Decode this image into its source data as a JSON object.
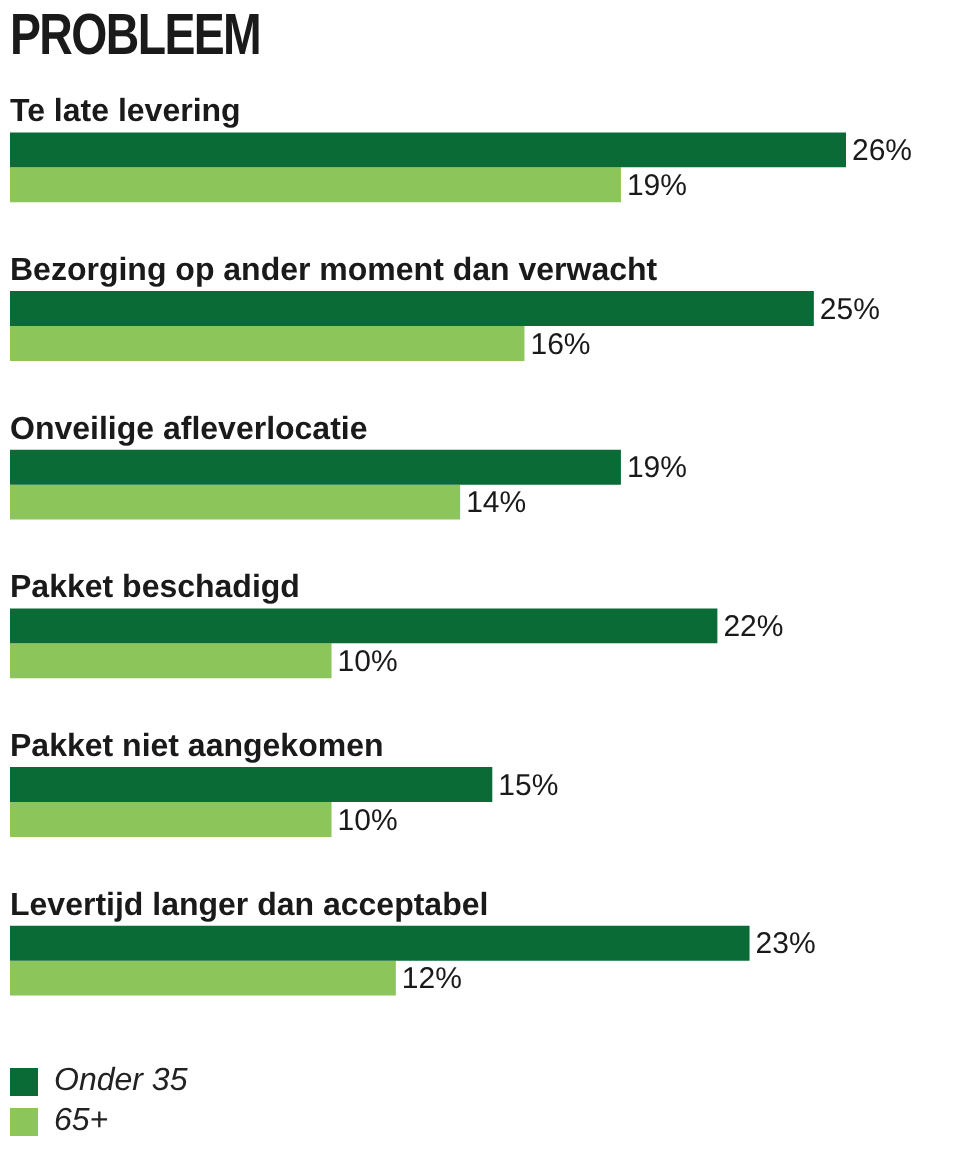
{
  "chart_data": {
    "type": "bar",
    "orientation": "horizontal",
    "title": "PROBLEEM",
    "categories": [
      "Te late levering",
      "Bezorging op ander moment dan verwacht",
      "Onveilige afleverlocatie",
      "Pakket beschadigd",
      "Pakket niet aangekomen",
      "Levertijd langer dan acceptabel"
    ],
    "series": [
      {
        "name": "Onder 35",
        "color": "#0b6b37",
        "values": [
          26,
          25,
          19,
          22,
          15,
          23
        ],
        "value_labels": [
          "26%",
          "25%",
          "19%",
          "22%",
          "15%",
          "23%"
        ]
      },
      {
        "name": "65+",
        "color": "#8cc65b",
        "values": [
          19,
          16,
          14,
          10,
          10,
          12
        ],
        "value_labels": [
          "19%",
          "16%",
          "14%",
          "10%",
          "10%",
          "12%"
        ]
      }
    ],
    "legend": "bottom left"
  }
}
